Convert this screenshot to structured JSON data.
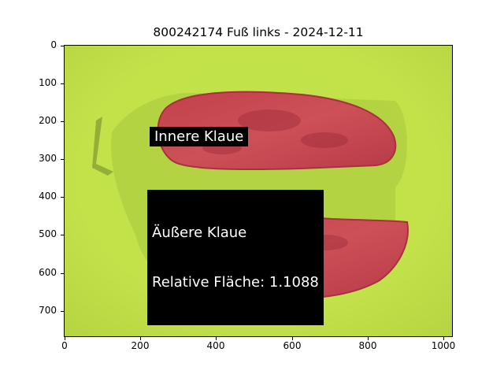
{
  "title": "800242174 Fuß links - 2024-12-11",
  "axes": {
    "x_ticks": [
      "0",
      "200",
      "400",
      "600",
      "800",
      "1000"
    ],
    "y_ticks": [
      "0",
      "100",
      "200",
      "300",
      "400",
      "500",
      "600",
      "700"
    ]
  },
  "annotations": {
    "inner": "Innere Klaue",
    "outer_line1": "Äußere Klaue",
    "outer_line2": "Relative Fläche: 1.1088"
  },
  "colors": {
    "background": "#c4e24a",
    "claw": "#c8464e",
    "claw_edge": "#a83040"
  }
}
